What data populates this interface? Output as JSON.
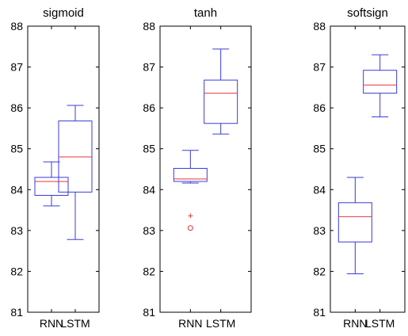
{
  "chart_data": [
    {
      "type": "box",
      "title": "sigmoid",
      "categories": [
        "RNN",
        "LSTM"
      ],
      "ylim": [
        81,
        88
      ],
      "yticks": [
        81,
        82,
        83,
        84,
        85,
        86,
        87,
        88
      ],
      "series": [
        {
          "category": "RNN",
          "whisker_low": 83.6,
          "q1": 83.86,
          "median": 84.2,
          "q3": 84.3,
          "whisker_high": 84.68,
          "outliers": []
        },
        {
          "category": "LSTM",
          "whisker_low": 82.78,
          "q1": 83.94,
          "median": 84.8,
          "q3": 85.68,
          "whisker_high": 86.06,
          "outliers": []
        }
      ]
    },
    {
      "type": "box",
      "title": "tanh",
      "categories": [
        "RNN",
        "LSTM"
      ],
      "ylim": [
        81,
        88
      ],
      "yticks": [
        81,
        82,
        83,
        84,
        85,
        86,
        87,
        88
      ],
      "series": [
        {
          "category": "RNN",
          "whisker_low": 84.16,
          "q1": 84.2,
          "median": 84.26,
          "q3": 84.52,
          "whisker_high": 84.96,
          "outliers": [
            {
              "value": 83.36,
              "marker": "+"
            },
            {
              "value": 83.06,
              "marker": "o"
            }
          ]
        },
        {
          "category": "LSTM",
          "whisker_low": 85.36,
          "q1": 85.62,
          "median": 86.36,
          "q3": 86.68,
          "whisker_high": 87.44,
          "outliers": []
        }
      ]
    },
    {
      "type": "box",
      "title": "softsign",
      "categories": [
        "RNN",
        "LSTM"
      ],
      "ylim": [
        81,
        88
      ],
      "yticks": [
        81,
        82,
        83,
        84,
        85,
        86,
        87,
        88
      ],
      "series": [
        {
          "category": "RNN",
          "whisker_low": 81.94,
          "q1": 82.72,
          "median": 83.34,
          "q3": 83.68,
          "whisker_high": 84.3,
          "outliers": []
        },
        {
          "category": "LSTM",
          "whisker_low": 85.78,
          "q1": 86.36,
          "median": 86.56,
          "q3": 86.92,
          "whisker_high": 87.3,
          "outliers": []
        }
      ]
    }
  ],
  "colors": {
    "box": "#3b3bd9",
    "median": "#e8343a",
    "outlier": "#e8343a",
    "axis": "#000000"
  }
}
